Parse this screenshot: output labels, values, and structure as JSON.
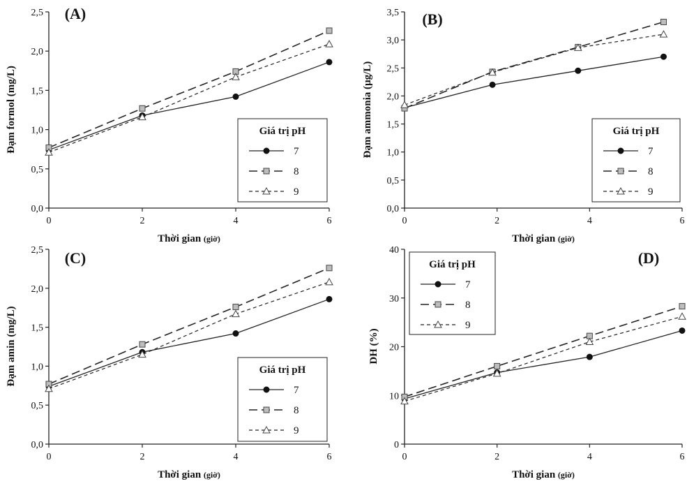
{
  "chart_data": [
    {
      "type": "line",
      "panel_label": "(A)",
      "xlabel": "Thời gian",
      "xlabel_unit": "(giờ)",
      "ylabel": "Đạm formol (mg/L)",
      "xlim": [
        0,
        6
      ],
      "ylim": [
        0,
        2.5
      ],
      "xticks": [
        0,
        2,
        4,
        6
      ],
      "xtick_labels": [
        "0",
        "2",
        "4",
        "6"
      ],
      "yticks": [
        0,
        0.5,
        1.0,
        1.5,
        2.0,
        2.5
      ],
      "ytick_labels": [
        "0,0",
        "0,5",
        "1,0",
        "1,5",
        "2,0",
        "2,5"
      ],
      "legend": {
        "title": "Giá trị pH",
        "placement": "lower-right"
      },
      "series": [
        {
          "name": "7",
          "x": [
            0,
            2,
            4,
            6
          ],
          "values": [
            0.74,
            1.18,
            1.42,
            1.86
          ]
        },
        {
          "name": "8",
          "x": [
            0,
            2,
            4,
            6
          ],
          "values": [
            0.77,
            1.27,
            1.74,
            2.26
          ]
        },
        {
          "name": "9",
          "x": [
            0,
            2,
            4,
            6
          ],
          "values": [
            0.71,
            1.16,
            1.67,
            2.09
          ]
        }
      ]
    },
    {
      "type": "line",
      "panel_label": "(B)",
      "xlabel": "Thời gian",
      "xlabel_unit": "(giờ)",
      "ylabel": "Đạm ammonia (µg/L)",
      "xlim": [
        0,
        6
      ],
      "ylim": [
        0,
        3.5
      ],
      "xticks": [
        0,
        2,
        4,
        6
      ],
      "xtick_labels": [
        "0",
        "2",
        "4",
        "6"
      ],
      "yticks": [
        0,
        0.5,
        1.0,
        1.5,
        2.0,
        2.5,
        3.0,
        3.5
      ],
      "ytick_labels": [
        "0,0",
        "0,5",
        "1,0",
        "1,5",
        "2,0",
        "2,5",
        "3,0",
        "3,5"
      ],
      "legend": {
        "title": "Giá trị pH",
        "placement": "lower-right"
      },
      "series": [
        {
          "name": "7",
          "x": [
            0,
            1.9,
            3.75,
            5.6
          ],
          "values": [
            1.79,
            2.2,
            2.45,
            2.7
          ]
        },
        {
          "name": "8",
          "x": [
            0,
            1.9,
            3.75,
            5.6
          ],
          "values": [
            1.78,
            2.43,
            2.87,
            3.32
          ]
        },
        {
          "name": "9",
          "x": [
            0,
            1.9,
            3.75,
            5.6
          ],
          "values": [
            1.84,
            2.42,
            2.86,
            3.1
          ]
        }
      ]
    },
    {
      "type": "line",
      "panel_label": "(C)",
      "xlabel": "Thời gian",
      "xlabel_unit": "(giờ)",
      "ylabel": "Đạm amin (mg/L)",
      "xlim": [
        0,
        6
      ],
      "ylim": [
        0,
        2.5
      ],
      "xticks": [
        0,
        2,
        4,
        6
      ],
      "xtick_labels": [
        "0",
        "2",
        "4",
        "6"
      ],
      "yticks": [
        0,
        0.5,
        1.0,
        1.5,
        2.0,
        2.5
      ],
      "ytick_labels": [
        "0,0",
        "0,5",
        "1,0",
        "1,5",
        "2,0",
        "2,5"
      ],
      "legend": {
        "title": "Giá trị pH",
        "placement": "lower-right"
      },
      "series": [
        {
          "name": "7",
          "x": [
            0,
            2,
            4,
            6
          ],
          "values": [
            0.74,
            1.18,
            1.42,
            1.86
          ]
        },
        {
          "name": "8",
          "x": [
            0,
            2,
            4,
            6
          ],
          "values": [
            0.77,
            1.28,
            1.76,
            2.26
          ]
        },
        {
          "name": "9",
          "x": [
            0,
            2,
            4,
            6
          ],
          "values": [
            0.71,
            1.15,
            1.67,
            2.08
          ]
        }
      ]
    },
    {
      "type": "line",
      "panel_label": "(D)",
      "xlabel": "Thời gian",
      "xlabel_unit": "(giờ)",
      "ylabel": "DH (%)",
      "xlim": [
        0,
        6
      ],
      "ylim": [
        0,
        40
      ],
      "xticks": [
        0,
        2,
        4,
        6
      ],
      "xtick_labels": [
        "0",
        "2",
        "4",
        "6"
      ],
      "yticks": [
        0,
        10,
        20,
        30,
        40
      ],
      "ytick_labels": [
        "0",
        "10",
        "20",
        "30",
        "40"
      ],
      "legend": {
        "title": "Giá trị pH",
        "placement": "top-left"
      },
      "series": [
        {
          "name": "7",
          "x": [
            0,
            2,
            4,
            6
          ],
          "values": [
            9.3,
            14.7,
            17.9,
            23.3
          ]
        },
        {
          "name": "8",
          "x": [
            0,
            2,
            4,
            6
          ],
          "values": [
            9.7,
            16.0,
            22.2,
            28.3
          ]
        },
        {
          "name": "9",
          "x": [
            0,
            2,
            4,
            6
          ],
          "values": [
            8.8,
            14.5,
            21.0,
            26.2
          ]
        }
      ]
    }
  ]
}
